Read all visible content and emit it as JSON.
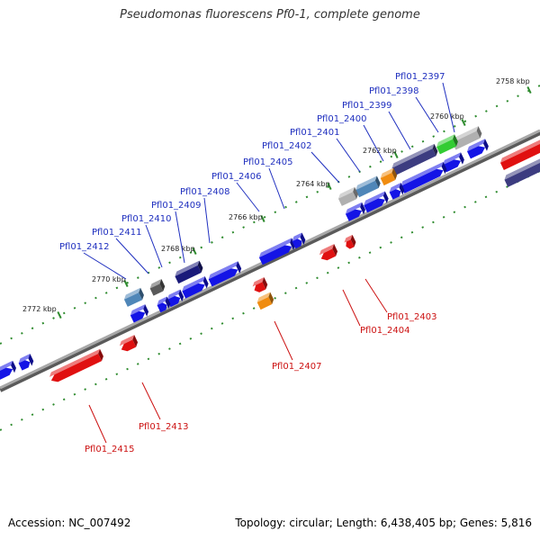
{
  "title": "Pseudomonas fluorescens Pf0-1, complete genome",
  "footer": {
    "accession": "Accession: NC_007492",
    "summary": "Topology: circular; Length: 6,438,405 bp; Genes: 5,816"
  },
  "colors": {
    "backbone": "#8a8a8a",
    "tick": "#2e8b2e",
    "forward_label": "#1f2fbf",
    "reverse_label": "#cc1111",
    "gene_blue": "#1414e6",
    "gene_red": "#e01010",
    "gene_navy": "#1a1a7a",
    "gene_slate": "#3c3c80",
    "gene_steel": "#4f86b8",
    "gene_orange": "#f08c10",
    "gene_green": "#33cc33",
    "gene_gray": "#b0b0b0",
    "gene_darkgray": "#5a5a5a"
  },
  "kbp_ticks": [
    "2758 kbp",
    "2760 kbp",
    "2762 kbp",
    "2764 kbp",
    "2766 kbp",
    "2768 kbp",
    "2770 kbp",
    "2772 kbp"
  ],
  "forward_labels": [
    "Pfl01_2397",
    "Pfl01_2398",
    "Pfl01_2399",
    "Pfl01_2400",
    "Pfl01_2401",
    "Pfl01_2402",
    "Pfl01_2405",
    "Pfl01_2406",
    "Pfl01_2408",
    "Pfl01_2409",
    "Pfl01_2410",
    "Pfl01_2411",
    "Pfl01_2412"
  ],
  "reverse_labels": [
    "Pfl01_2403",
    "Pfl01_2404",
    "Pfl01_2407",
    "Pfl01_2413",
    "Pfl01_2415"
  ]
}
